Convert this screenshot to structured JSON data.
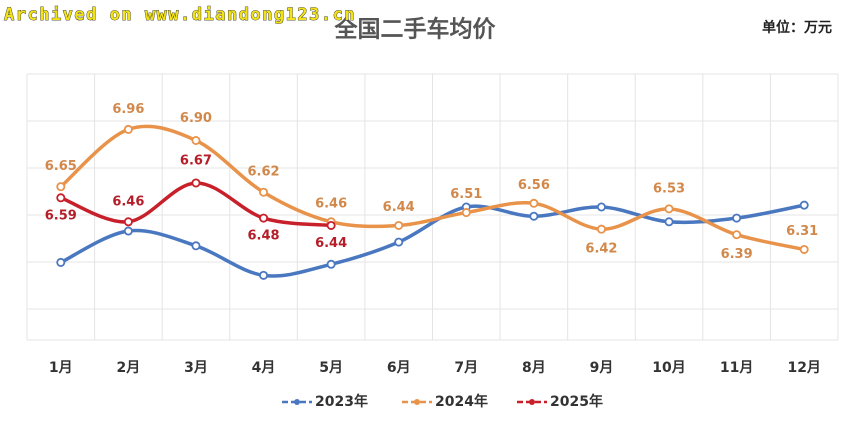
{
  "watermark": "Archived on www.diandong123.cn",
  "chart_data": {
    "type": "line",
    "title": "全国二手车均价",
    "unit": "单位：万元",
    "categories": [
      "1月",
      "2月",
      "3月",
      "4月",
      "5月",
      "6月",
      "7月",
      "8月",
      "9月",
      "10月",
      "11月",
      "12月"
    ],
    "ylim": [
      5.82,
      7.26
    ],
    "series": [
      {
        "name": "2023年",
        "color": "#4a78c0",
        "values": [
          6.24,
          6.41,
          6.33,
          6.17,
          6.23,
          6.35,
          6.54,
          6.49,
          6.54,
          6.46,
          6.48,
          6.55
        ]
      },
      {
        "name": "2024年",
        "color": "#e8924a",
        "values": [
          6.65,
          6.96,
          6.9,
          6.62,
          6.46,
          6.44,
          6.51,
          6.56,
          6.42,
          6.53,
          6.39,
          6.31
        ],
        "value_labels": [
          "6.65",
          "6.96",
          "6.90",
          "6.62",
          "6.46",
          "6.44",
          "6.51",
          "6.56",
          "6.42",
          "6.53",
          "6.39",
          "6.31"
        ]
      },
      {
        "name": "2025年",
        "color": "#c8202a",
        "values": [
          6.59,
          6.46,
          6.67,
          6.48,
          6.44,
          null,
          null,
          null,
          null,
          null,
          null,
          null
        ],
        "value_labels": [
          "6.59",
          "6.46",
          "6.67",
          "6.48",
          "6.44",
          null,
          null,
          null,
          null,
          null,
          null,
          null
        ]
      }
    ],
    "legend": "bottom"
  }
}
